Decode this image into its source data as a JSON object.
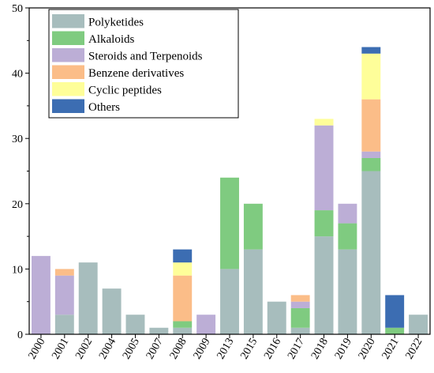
{
  "chart_data": {
    "type": "bar",
    "stacked": true,
    "title": "",
    "xlabel": "",
    "ylabel": "",
    "ylim": [
      0,
      50
    ],
    "yticks": [
      0,
      10,
      20,
      30,
      40,
      50
    ],
    "grid": false,
    "legend_position": "top-left",
    "categories": [
      "2000",
      "2001",
      "2002",
      "2004",
      "2005",
      "2007",
      "2008",
      "2009",
      "2013",
      "2015",
      "2016",
      "2017",
      "2018",
      "2019",
      "2020",
      "2021",
      "2022"
    ],
    "series": [
      {
        "name": "Polyketides",
        "color": "#a7bdbd",
        "values": [
          0,
          3,
          11,
          7,
          3,
          1,
          1,
          0,
          10,
          13,
          5,
          1,
          15,
          13,
          25,
          0,
          3
        ]
      },
      {
        "name": "Alkaloids",
        "color": "#7fcb80",
        "values": [
          0,
          0,
          0,
          0,
          0,
          0,
          1,
          0,
          14,
          7,
          0,
          3,
          4,
          4,
          2,
          1,
          0
        ]
      },
      {
        "name": "Steroids and Terpenoids",
        "color": "#bcaed6",
        "values": [
          12,
          6,
          0,
          0,
          0,
          0,
          0,
          3,
          0,
          0,
          0,
          1,
          13,
          3,
          1,
          0,
          0
        ]
      },
      {
        "name": "Benzene derivatives",
        "color": "#fbbd88",
        "values": [
          0,
          1,
          0,
          0,
          0,
          0,
          7,
          0,
          0,
          0,
          0,
          1,
          0,
          0,
          8,
          0,
          0
        ]
      },
      {
        "name": "Cyclic peptides",
        "color": "#fefe99",
        "values": [
          0,
          0,
          0,
          0,
          0,
          0,
          2,
          0,
          0,
          0,
          0,
          0,
          1,
          0,
          7,
          0,
          0
        ]
      },
      {
        "name": "Others",
        "color": "#3c6db2",
        "values": [
          0,
          0,
          0,
          0,
          0,
          0,
          2,
          0,
          0,
          0,
          0,
          0,
          0,
          0,
          1,
          5,
          0
        ]
      }
    ]
  }
}
